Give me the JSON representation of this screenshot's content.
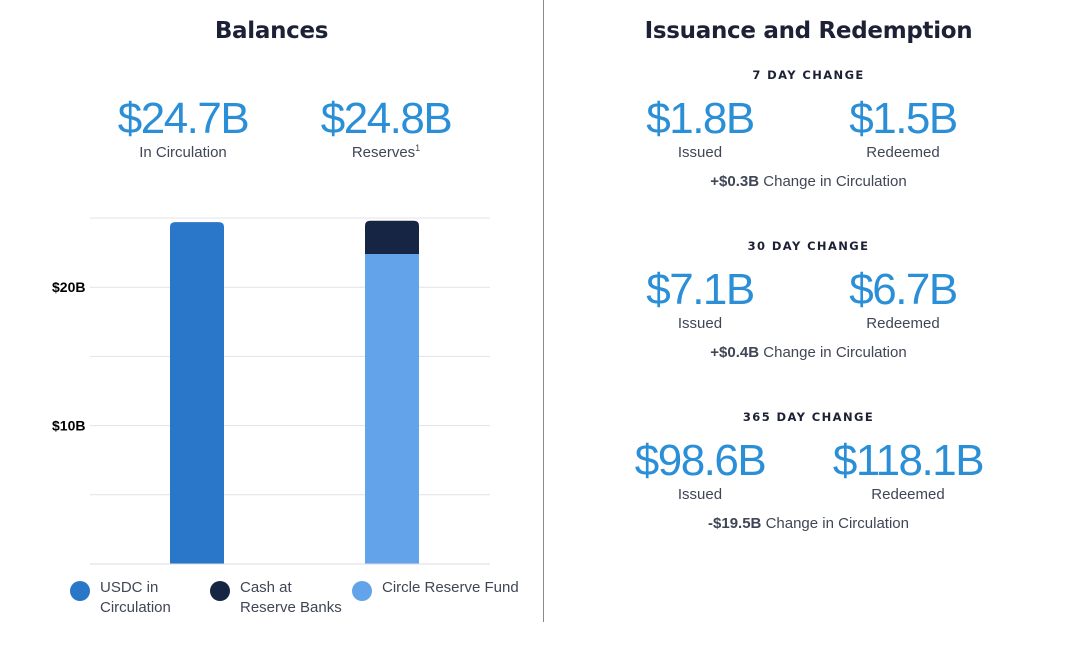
{
  "balances": {
    "title": "Balances",
    "stats": [
      {
        "value": "$24.7B",
        "label": "In Circulation",
        "sup": ""
      },
      {
        "value": "$24.8B",
        "label": "Reserves",
        "sup": "1"
      }
    ]
  },
  "issuance": {
    "title": "Issuance and Redemption",
    "periods": [
      {
        "heading": "7 DAY CHANGE",
        "issued": "$1.8B",
        "issued_label": "Issued",
        "redeemed": "$1.5B",
        "redeemed_label": "Redeemed",
        "change_value": "+$0.3B",
        "change_text": "Change in Circulation"
      },
      {
        "heading": "30 DAY CHANGE",
        "issued": "$7.1B",
        "issued_label": "Issued",
        "redeemed": "$6.7B",
        "redeemed_label": "Redeemed",
        "change_value": "+$0.4B",
        "change_text": "Change in Circulation"
      },
      {
        "heading": "365 DAY CHANGE",
        "issued": "$98.6B",
        "issued_label": "Issued",
        "redeemed": "$118.1B",
        "redeemed_label": "Redeemed",
        "change_value": "-$19.5B",
        "change_text": "Change in Circulation"
      }
    ]
  },
  "chart_data": {
    "type": "bar",
    "stacked": true,
    "categories": [
      "",
      ""
    ],
    "series": [
      {
        "name": "USDC in Circulation",
        "color": "#2a76c9",
        "values": [
          24.7,
          0
        ]
      },
      {
        "name": "Circle Reserve Fund",
        "color": "#62a3ea",
        "values": [
          0,
          22.4
        ]
      },
      {
        "name": "Cash at Reserve Banks",
        "color": "#172544",
        "values": [
          0,
          2.4
        ]
      }
    ],
    "legend": [
      {
        "name": "USDC in Circulation",
        "lines": [
          "USDC in",
          "Circulation"
        ],
        "color": "#2a76c9"
      },
      {
        "name": "Cash at Reserve Banks",
        "lines": [
          "Cash at",
          "Reserve Banks"
        ],
        "color": "#172544"
      },
      {
        "name": "Circle Reserve Fund",
        "lines": [
          "Circle Reserve Fund"
        ],
        "color": "#62a3ea"
      }
    ],
    "yticks": [
      {
        "value": 10,
        "label": "$10B"
      },
      {
        "value": 20,
        "label": "$20B"
      }
    ],
    "gridlines": [
      0,
      5,
      10,
      15,
      20,
      25
    ],
    "ylim": [
      0,
      25
    ],
    "grid": true,
    "legend_position": "bottom"
  }
}
